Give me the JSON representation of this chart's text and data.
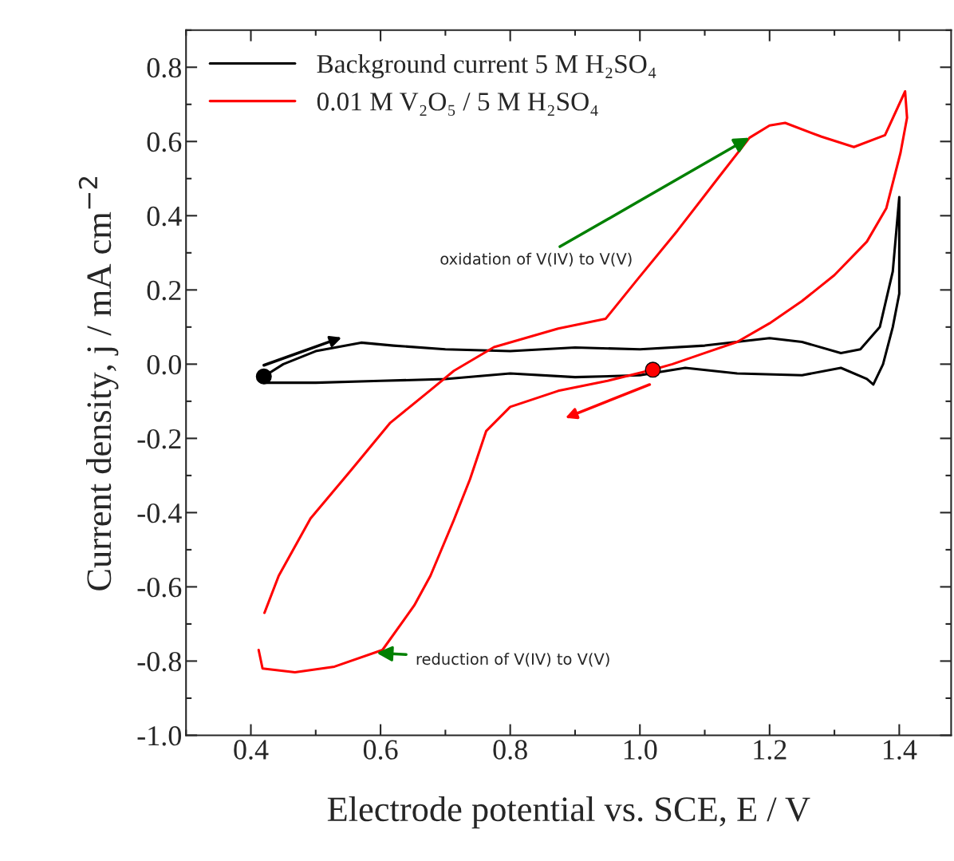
{
  "chart_data": {
    "type": "line",
    "xlabel": "Electrode potential vs. SCE, E / V",
    "ylabel": "Current density, j / mA cm$^{−2}$",
    "xlim": [
      0.3,
      1.48
    ],
    "ylim": [
      -1.0,
      0.9
    ],
    "xticks": [
      {
        "value": 0.4,
        "label": "0.4"
      },
      {
        "value": 0.6,
        "label": "0.6"
      },
      {
        "value": 0.8,
        "label": "0.8"
      },
      {
        "value": 1.0,
        "label": "1.0"
      },
      {
        "value": 1.2,
        "label": "1.2"
      },
      {
        "value": 1.4,
        "label": "1.4"
      }
    ],
    "yticks": [
      {
        "value": -1.0,
        "label": "-1.0"
      },
      {
        "value": -0.8,
        "label": "-0.8"
      },
      {
        "value": -0.6,
        "label": "-0.6"
      },
      {
        "value": -0.4,
        "label": "-0.4"
      },
      {
        "value": -0.2,
        "label": "-0.2"
      },
      {
        "value": 0.0,
        "label": "0.0"
      },
      {
        "value": 0.2,
        "label": "0.2"
      },
      {
        "value": 0.4,
        "label": "0.4"
      },
      {
        "value": 0.6,
        "label": "0.6"
      },
      {
        "value": 0.8,
        "label": "0.8"
      }
    ],
    "grid": false,
    "legend": "top left",
    "line_style": "solid",
    "marker": "none",
    "series": [
      {
        "name": "Background current 5 M H₂SO₄",
        "color": "#000000",
        "x": [
          0.42,
          0.45,
          0.5,
          0.57,
          0.62,
          0.7,
          0.8,
          0.9,
          1.0,
          1.1,
          1.2,
          1.25,
          1.31,
          1.34,
          1.37,
          1.39,
          1.4,
          1.4,
          1.39,
          1.375,
          1.36,
          1.35,
          1.31,
          1.25,
          1.15,
          1.07,
          1.0,
          0.9,
          0.8,
          0.7,
          0.6,
          0.5,
          0.42
        ],
        "values": [
          -0.033,
          0.0,
          0.035,
          0.058,
          0.05,
          0.04,
          0.035,
          0.045,
          0.04,
          0.05,
          0.07,
          0.06,
          0.03,
          0.04,
          0.1,
          0.25,
          0.45,
          0.19,
          0.1,
          0.0,
          -0.055,
          -0.04,
          -0.01,
          -0.03,
          -0.025,
          -0.01,
          -0.03,
          -0.035,
          -0.025,
          -0.04,
          -0.045,
          -0.05,
          -0.05
        ]
      },
      {
        "name": "0.01 M V₂O₅ / 5 M H₂SO₄",
        "color": "#ff0000",
        "x": [
          1.02,
          0.95,
          0.874,
          0.8,
          0.763,
          0.738,
          0.713,
          0.677,
          0.652,
          0.603,
          0.529,
          0.468,
          0.418,
          0.412,
          0.415,
          0.421,
          0.443,
          0.492,
          0.554,
          0.615,
          0.677,
          0.713,
          0.775,
          0.874,
          0.947,
          0.997,
          1.058,
          1.12,
          1.169,
          1.2,
          1.224,
          1.28,
          1.33,
          1.378,
          1.409,
          1.412,
          1.402,
          1.38,
          1.35,
          1.3,
          1.25,
          1.2,
          1.15,
          1.1,
          1.05,
          1.02
        ],
        "values": [
          -0.015,
          -0.045,
          -0.072,
          -0.115,
          -0.18,
          -0.31,
          -0.42,
          -0.57,
          -0.65,
          -0.77,
          -0.815,
          -0.83,
          -0.82,
          -0.77,
          null,
          -0.67,
          -0.57,
          -0.416,
          -0.287,
          -0.158,
          -0.07,
          -0.018,
          0.046,
          0.096,
          0.122,
          0.23,
          0.36,
          0.5,
          0.61,
          0.643,
          0.65,
          0.613,
          0.585,
          0.617,
          0.735,
          0.664,
          0.57,
          0.42,
          0.33,
          0.24,
          0.17,
          0.11,
          0.06,
          0.03,
          0.0,
          -0.015
        ]
      },
      {
        "type": "scatter",
        "marker": "circle",
        "color": "#000000",
        "x": [
          0.42
        ],
        "values": [
          -0.033
        ]
      },
      {
        "type": "scatter",
        "marker": "circle",
        "color": "#ff0000",
        "x": [
          1.02
        ],
        "values": [
          -0.015
        ]
      }
    ],
    "annotations": [
      {
        "text": "oxidation of V(IV) to V(V)",
        "x": 1.169,
        "y": 0.61
      },
      {
        "text": "reduction of V(IV) to V(V)",
        "x": 0.594,
        "y": -0.778
      }
    ]
  }
}
